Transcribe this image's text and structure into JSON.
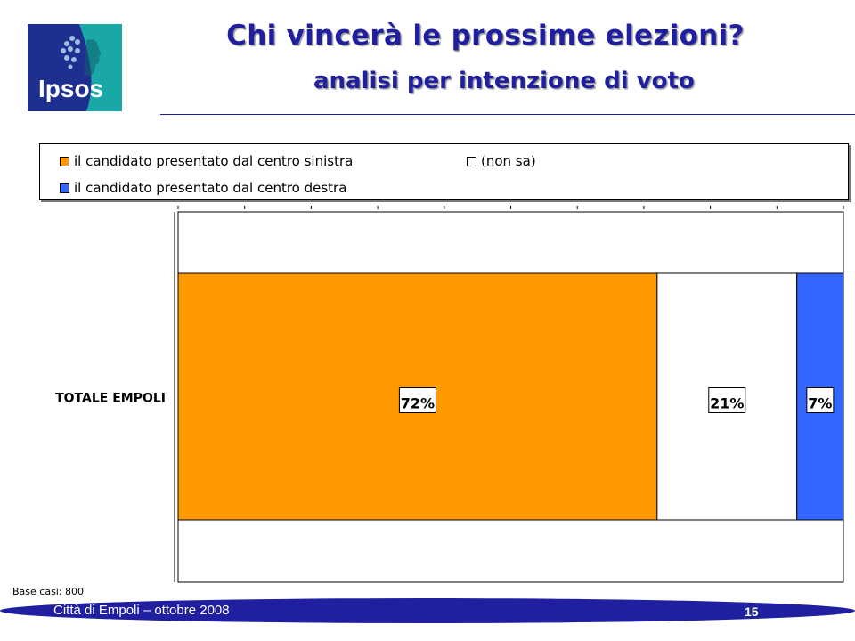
{
  "header": {
    "logo_text": "Ipsos",
    "title": "Chi vincerà le prossime elezioni?",
    "subtitle": "analisi per intenzione di voto"
  },
  "colors": {
    "accent": "#1f1fa0",
    "sinistra": "#ff9900",
    "non_sa": "#ffffff",
    "destra": "#3366ff"
  },
  "chart_data": {
    "type": "bar",
    "orientation": "horizontal-stacked-100",
    "categories": [
      "TOTALE EMPOLI"
    ],
    "series": [
      {
        "name": "il candidato presentato dal centro sinistra",
        "values": [
          72
        ],
        "label": "72%",
        "color": "#ff9900"
      },
      {
        "name": "(non sa)",
        "values": [
          21
        ],
        "label": "21%",
        "color": "#ffffff"
      },
      {
        "name": "il candidato presentato dal centro destra",
        "values": [
          7
        ],
        "label": "7%",
        "color": "#3366ff"
      }
    ],
    "xlim": [
      0,
      100
    ],
    "legend_position": "top"
  },
  "legend": [
    {
      "label": "il candidato presentato dal centro sinistra"
    },
    {
      "label": "(non sa)"
    },
    {
      "label": "il candidato presentato dal centro destra"
    }
  ],
  "base_note": "Base casi: 800",
  "footer": {
    "text": "Città di Empoli – ottobre 2008",
    "page": "15"
  }
}
